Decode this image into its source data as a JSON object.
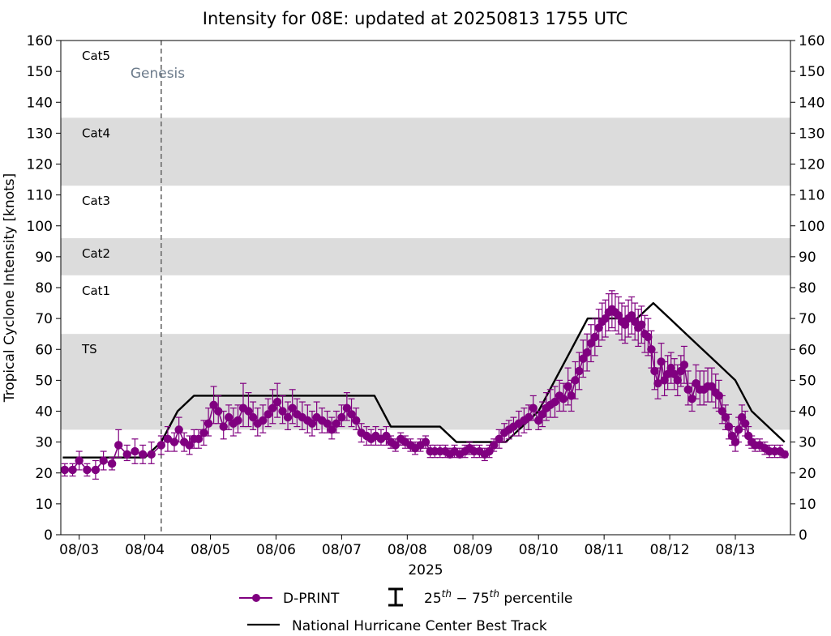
{
  "chart_data": {
    "type": "line",
    "title": "Intensity for 08E: updated at 20250813 1755 UTC",
    "xlabel": "2025",
    "ylabel": "Tropical Cyclone Intensity [knots]",
    "ylim": [
      0,
      160
    ],
    "yticks": [
      0,
      10,
      20,
      30,
      40,
      50,
      60,
      70,
      80,
      90,
      100,
      110,
      120,
      130,
      140,
      150,
      160
    ],
    "xlim": [
      2.72,
      13.84
    ],
    "xticks": [
      {
        "day": 3,
        "label": "08/03"
      },
      {
        "day": 4,
        "label": "08/04"
      },
      {
        "day": 5,
        "label": "08/05"
      },
      {
        "day": 6,
        "label": "08/06"
      },
      {
        "day": 7,
        "label": "08/07"
      },
      {
        "day": 8,
        "label": "08/08"
      },
      {
        "day": 9,
        "label": "08/09"
      },
      {
        "day": 10,
        "label": "08/10"
      },
      {
        "day": 11,
        "label": "08/11"
      },
      {
        "day": 12,
        "label": "08/12"
      },
      {
        "day": 13,
        "label": "08/13"
      }
    ],
    "categories": [
      {
        "label": "TS",
        "low": 34,
        "high": 65,
        "shaded": true
      },
      {
        "label": "Cat1",
        "low": 65,
        "high": 84,
        "shaded": false
      },
      {
        "label": "Cat2",
        "low": 84,
        "high": 96,
        "shaded": true
      },
      {
        "label": "Cat3",
        "low": 96,
        "high": 113,
        "shaded": false
      },
      {
        "label": "Cat4",
        "low": 113,
        "high": 135,
        "shaded": true
      },
      {
        "label": "Cat5",
        "low": 135,
        "high": 160,
        "shaded": false
      }
    ],
    "genesis": {
      "label": "Genesis",
      "x": 4.25
    },
    "best_track": {
      "name": "National Hurricane Center Best Track",
      "x": [
        2.75,
        4.0,
        4.25,
        4.5,
        4.75,
        5.0,
        5.5,
        6.0,
        6.5,
        7.0,
        7.5,
        7.75,
        8.0,
        8.5,
        8.75,
        9.0,
        9.5,
        9.75,
        10.0,
        10.25,
        10.5,
        10.75,
        11.0,
        11.25,
        11.5,
        11.75,
        12.0,
        12.25,
        12.5,
        12.75,
        13.0,
        13.25,
        13.5,
        13.75
      ],
      "y": [
        25,
        25,
        30,
        40,
        45,
        45,
        45,
        45,
        45,
        45,
        45,
        35,
        35,
        35,
        30,
        30,
        30,
        35,
        40,
        50,
        60,
        70,
        70,
        70,
        70,
        75,
        70,
        65,
        60,
        55,
        50,
        40,
        35,
        30
      ]
    },
    "series": [
      {
        "name": "D-PRINT",
        "color": "#800080",
        "x": [
          2.78,
          2.9,
          3.0,
          3.12,
          3.25,
          3.37,
          3.5,
          3.6,
          3.73,
          3.85,
          3.97,
          4.1,
          4.25,
          4.35,
          4.45,
          4.52,
          4.6,
          4.68,
          4.75,
          4.82,
          4.9,
          4.97,
          5.05,
          5.12,
          5.2,
          5.28,
          5.35,
          5.42,
          5.5,
          5.58,
          5.65,
          5.72,
          5.8,
          5.88,
          5.95,
          6.02,
          6.1,
          6.18,
          6.25,
          6.32,
          6.4,
          6.48,
          6.55,
          6.62,
          6.7,
          6.78,
          6.85,
          6.92,
          7.0,
          7.08,
          7.15,
          7.22,
          7.3,
          7.38,
          7.45,
          7.52,
          7.6,
          7.68,
          7.75,
          7.82,
          7.9,
          7.97,
          8.05,
          8.12,
          8.2,
          8.28,
          8.35,
          8.42,
          8.5,
          8.58,
          8.65,
          8.72,
          8.8,
          8.88,
          8.95,
          9.02,
          9.1,
          9.18,
          9.25,
          9.32,
          9.4,
          9.48,
          9.55,
          9.62,
          9.7,
          9.78,
          9.85,
          9.92,
          10.0,
          10.06,
          10.12,
          10.18,
          10.25,
          10.32,
          10.38,
          10.45,
          10.5,
          10.56,
          10.62,
          10.68,
          10.74,
          10.8,
          10.86,
          10.92,
          10.97,
          11.02,
          11.07,
          11.12,
          11.17,
          11.22,
          11.27,
          11.32,
          11.37,
          11.42,
          11.47,
          11.52,
          11.57,
          11.62,
          11.67,
          11.72,
          11.77,
          11.82,
          11.87,
          11.92,
          11.97,
          12.02,
          12.07,
          12.12,
          12.17,
          12.22,
          12.28,
          12.34,
          12.4,
          12.46,
          12.52,
          12.58,
          12.64,
          12.7,
          12.75,
          12.8,
          12.85,
          12.9,
          12.95,
          13.0,
          13.05,
          13.1,
          13.15,
          13.2,
          13.25,
          13.3,
          13.37,
          13.45,
          13.52,
          13.6,
          13.68,
          13.75
        ],
        "values": [
          21,
          21,
          24,
          21,
          21,
          24,
          23,
          29,
          26,
          27,
          26,
          26,
          29,
          31,
          30,
          34,
          30,
          29,
          31,
          31,
          33,
          36,
          42,
          40,
          35,
          38,
          36,
          37,
          41,
          40,
          38,
          36,
          37,
          39,
          41,
          43,
          40,
          38,
          41,
          39,
          38,
          37,
          36,
          38,
          37,
          36,
          34,
          36,
          38,
          41,
          39,
          37,
          33,
          32,
          31,
          32,
          31,
          32,
          30,
          29,
          31,
          30,
          29,
          28,
          29,
          30,
          27,
          27,
          27,
          27,
          26,
          27,
          26,
          27,
          28,
          27,
          27,
          26,
          27,
          29,
          31,
          33,
          34,
          35,
          36,
          37,
          38,
          41,
          37,
          39,
          41,
          42,
          43,
          45,
          44,
          48,
          45,
          50,
          53,
          57,
          59,
          62,
          64,
          67,
          69,
          70,
          72,
          73,
          72,
          71,
          69,
          68,
          70,
          71,
          69,
          67,
          68,
          65,
          64,
          60,
          53,
          49,
          56,
          50,
          52,
          54,
          52,
          50,
          53,
          55,
          47,
          44,
          49,
          47,
          47,
          48,
          48,
          46,
          45,
          40,
          38,
          35,
          32,
          30,
          34,
          38,
          36,
          32,
          30,
          29,
          29,
          28,
          27,
          27,
          27,
          26
        ],
        "err_low": [
          2,
          2,
          3,
          2,
          3,
          3,
          2,
          4,
          2,
          4,
          3,
          3,
          3,
          4,
          3,
          4,
          3,
          3,
          3,
          3,
          4,
          4,
          6,
          4,
          4,
          4,
          4,
          4,
          6,
          5,
          4,
          4,
          4,
          4,
          5,
          5,
          4,
          4,
          5,
          4,
          4,
          4,
          4,
          4,
          4,
          3,
          3,
          3,
          3,
          4,
          4,
          3,
          3,
          3,
          2,
          3,
          2,
          3,
          2,
          2,
          2,
          2,
          2,
          2,
          2,
          2,
          2,
          2,
          2,
          2,
          1,
          2,
          1,
          2,
          2,
          2,
          2,
          2,
          2,
          2,
          3,
          3,
          3,
          3,
          4,
          4,
          4,
          4,
          3,
          4,
          4,
          4,
          5,
          5,
          4,
          6,
          5,
          6,
          6,
          6,
          6,
          6,
          6,
          6,
          6,
          6,
          6,
          6,
          6,
          6,
          6,
          6,
          6,
          6,
          6,
          6,
          6,
          6,
          6,
          6,
          6,
          5,
          6,
          5,
          5,
          5,
          5,
          5,
          5,
          6,
          5,
          4,
          5,
          5,
          5,
          5,
          5,
          5,
          5,
          4,
          4,
          4,
          3,
          3,
          4,
          4,
          4,
          3,
          2,
          2,
          2,
          2,
          2,
          2,
          2,
          1
        ],
        "err_high": [
          2,
          2,
          3,
          2,
          3,
          3,
          2,
          5,
          3,
          4,
          3,
          4,
          3,
          4,
          3,
          4,
          3,
          3,
          3,
          3,
          4,
          5,
          6,
          5,
          5,
          4,
          5,
          5,
          8,
          6,
          5,
          5,
          5,
          5,
          6,
          6,
          5,
          5,
          6,
          5,
          5,
          5,
          4,
          5,
          4,
          4,
          4,
          4,
          4,
          5,
          5,
          4,
          3,
          3,
          3,
          3,
          3,
          3,
          2,
          2,
          2,
          2,
          2,
          2,
          2,
          2,
          2,
          2,
          2,
          2,
          2,
          2,
          2,
          2,
          2,
          2,
          2,
          2,
          2,
          2,
          3,
          3,
          3,
          3,
          4,
          4,
          4,
          4,
          3,
          4,
          5,
          5,
          5,
          5,
          5,
          6,
          5,
          6,
          6,
          6,
          6,
          6,
          6,
          6,
          6,
          6,
          6,
          6,
          6,
          6,
          6,
          6,
          6,
          6,
          6,
          6,
          6,
          6,
          6,
          6,
          6,
          5,
          6,
          6,
          6,
          5,
          5,
          5,
          5,
          6,
          6,
          5,
          6,
          6,
          6,
          6,
          6,
          6,
          5,
          5,
          4,
          4,
          3,
          3,
          4,
          4,
          4,
          3,
          2,
          2,
          2,
          2,
          2,
          2,
          2,
          1
        ]
      }
    ],
    "legend": {
      "dprint_label": "D-PRINT",
      "percentile_label": "25th – 75th percentile",
      "percentile_sup_th": "th",
      "percentile_25": "25",
      "percentile_75": "75",
      "percentile_word": "percentile",
      "best_track_label": "National Hurricane Center Best Track",
      "placement": "bottom-center"
    }
  }
}
